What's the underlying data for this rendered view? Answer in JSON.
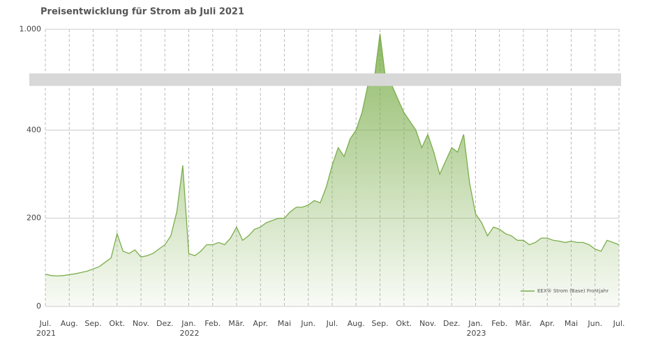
{
  "chart_data": {
    "type": "area",
    "title": "Preisentwicklung für Strom ab Juli 2021",
    "categories": [
      "Jul.\n2021",
      null,
      null,
      null,
      "Aug.",
      null,
      null,
      null,
      "Sep.",
      null,
      null,
      null,
      "Okt.",
      null,
      null,
      null,
      "Nov.",
      null,
      null,
      null,
      "Dez.",
      null,
      null,
      null,
      "Jan.\n2022",
      null,
      null,
      null,
      "Feb.",
      null,
      null,
      null,
      "Mär.",
      null,
      null,
      null,
      "Apr.",
      null,
      null,
      null,
      "Mai",
      null,
      null,
      null,
      "Jun.",
      null,
      null,
      null,
      "Jul.",
      null,
      null,
      null,
      "Aug.",
      null,
      null,
      null,
      "Sep.",
      null,
      null,
      null,
      "Okt.",
      null,
      null,
      null,
      "Nov.",
      null,
      null,
      null,
      "Dez.",
      null,
      null,
      null,
      "Jan.\n2023",
      null,
      null,
      null,
      "Feb.",
      null,
      null,
      null,
      "Mär.",
      null,
      null,
      null,
      "Apr.",
      null,
      null,
      null,
      "Mai",
      null,
      null,
      null,
      "Jun.",
      null,
      null,
      null,
      "Jul."
    ],
    "series": [
      {
        "name": "EEX® Strom (Base) Frontjahr",
        "color": "#7aad4a",
        "values": [
          73,
          70,
          69,
          70,
          72,
          74,
          77,
          80,
          85,
          90,
          100,
          110,
          165,
          125,
          120,
          128,
          112,
          115,
          120,
          130,
          140,
          160,
          215,
          320,
          120,
          115,
          125,
          140,
          140,
          145,
          140,
          155,
          180,
          150,
          160,
          175,
          180,
          190,
          195,
          200,
          200,
          215,
          225,
          225,
          230,
          240,
          235,
          270,
          320,
          360,
          340,
          380,
          400,
          440,
          550,
          650,
          990,
          620,
          520,
          470,
          440,
          420,
          400,
          360,
          390,
          350,
          300,
          330,
          360,
          350,
          390,
          280,
          210,
          190,
          160,
          180,
          175,
          165,
          160,
          150,
          150,
          140,
          145,
          155,
          155,
          150,
          148,
          145,
          148,
          145,
          145,
          140,
          130,
          125,
          150,
          145,
          140
        ]
      }
    ],
    "ylim": [
      0,
      1000
    ],
    "yticks": [
      0,
      200,
      400,
      {
        "value": 1000,
        "label": "1.000"
      }
    ],
    "axis_break": [
      500,
      900
    ],
    "grid": true,
    "legend": "bottom-right"
  }
}
